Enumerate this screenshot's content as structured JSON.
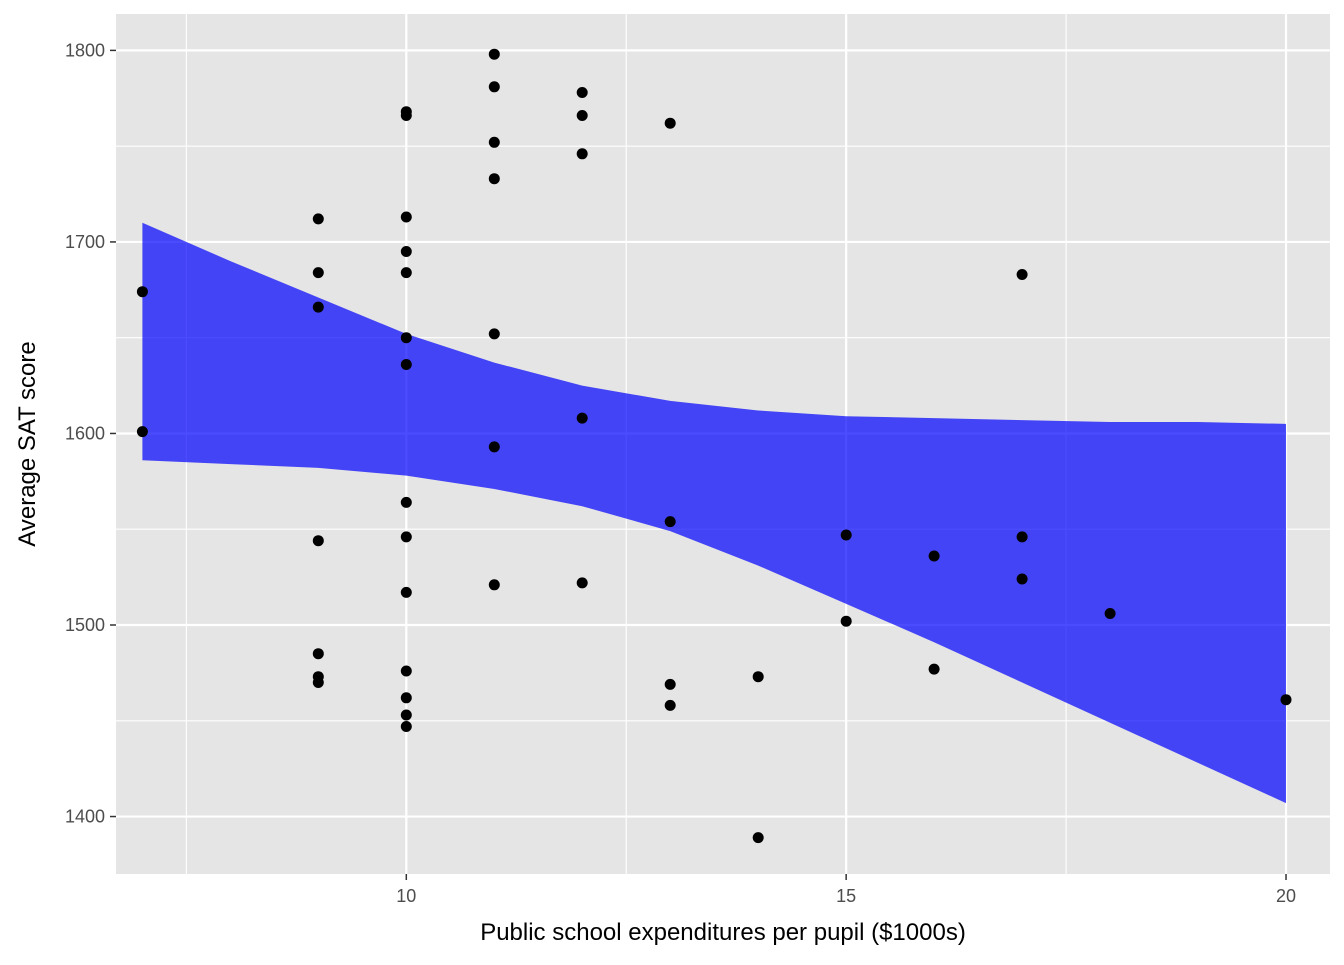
{
  "chart_data": {
    "type": "scatter",
    "title": "",
    "xlabel": "Public school expenditures per pupil ($1000s)",
    "ylabel": "Average SAT score",
    "xlim": [
      6.7,
      20.5
    ],
    "ylim": [
      1370,
      1819
    ],
    "x_ticks": [
      10,
      15,
      20
    ],
    "y_ticks": [
      1400,
      1500,
      1600,
      1700,
      1800
    ],
    "x_minor_ticks": [
      7.5,
      12.5,
      17.5
    ],
    "y_minor_ticks": [
      1450,
      1550,
      1650,
      1750
    ],
    "grid": true,
    "colors": {
      "panel_background": "#e5e5e5",
      "grid": "#ffffff",
      "points": "#000000",
      "band": "#0000ff",
      "band_opacity": 0.7
    },
    "points": [
      {
        "x": 7,
        "y": 1674
      },
      {
        "x": 7,
        "y": 1601
      },
      {
        "x": 9,
        "y": 1712
      },
      {
        "x": 9,
        "y": 1684
      },
      {
        "x": 9,
        "y": 1666
      },
      {
        "x": 9,
        "y": 1544
      },
      {
        "x": 9,
        "y": 1485
      },
      {
        "x": 9,
        "y": 1473
      },
      {
        "x": 9,
        "y": 1470
      },
      {
        "x": 10,
        "y": 1768
      },
      {
        "x": 10,
        "y": 1766
      },
      {
        "x": 10,
        "y": 1713
      },
      {
        "x": 10,
        "y": 1695
      },
      {
        "x": 10,
        "y": 1684
      },
      {
        "x": 10,
        "y": 1650
      },
      {
        "x": 10,
        "y": 1636
      },
      {
        "x": 10,
        "y": 1564
      },
      {
        "x": 10,
        "y": 1546
      },
      {
        "x": 10,
        "y": 1517
      },
      {
        "x": 10,
        "y": 1476
      },
      {
        "x": 10,
        "y": 1462
      },
      {
        "x": 10,
        "y": 1453
      },
      {
        "x": 10,
        "y": 1447
      },
      {
        "x": 11,
        "y": 1798
      },
      {
        "x": 11,
        "y": 1781
      },
      {
        "x": 11,
        "y": 1752
      },
      {
        "x": 11,
        "y": 1733
      },
      {
        "x": 11,
        "y": 1652
      },
      {
        "x": 11,
        "y": 1593
      },
      {
        "x": 11,
        "y": 1521
      },
      {
        "x": 12,
        "y": 1778
      },
      {
        "x": 12,
        "y": 1766
      },
      {
        "x": 12,
        "y": 1746
      },
      {
        "x": 12,
        "y": 1608
      },
      {
        "x": 12,
        "y": 1522
      },
      {
        "x": 13,
        "y": 1762
      },
      {
        "x": 13,
        "y": 1554
      },
      {
        "x": 13,
        "y": 1469
      },
      {
        "x": 13,
        "y": 1458
      },
      {
        "x": 14,
        "y": 1473
      },
      {
        "x": 14,
        "y": 1389
      },
      {
        "x": 15,
        "y": 1547
      },
      {
        "x": 15,
        "y": 1502
      },
      {
        "x": 16,
        "y": 1536
      },
      {
        "x": 16,
        "y": 1477
      },
      {
        "x": 17,
        "y": 1683
      },
      {
        "x": 17,
        "y": 1546
      },
      {
        "x": 17,
        "y": 1524
      },
      {
        "x": 18,
        "y": 1506
      },
      {
        "x": 20,
        "y": 1461
      }
    ],
    "band": {
      "x": [
        7,
        8,
        9,
        10,
        11,
        12,
        13,
        14,
        15,
        16,
        17,
        18,
        19,
        20
      ],
      "upper": [
        1710,
        1690,
        1671,
        1652,
        1637,
        1625,
        1617,
        1612,
        1609,
        1608,
        1607,
        1606,
        1606,
        1605
      ],
      "lower": [
        1586,
        1584,
        1582,
        1578,
        1571,
        1562,
        1549,
        1531,
        1511,
        1491,
        1470,
        1449,
        1428,
        1407
      ]
    }
  }
}
